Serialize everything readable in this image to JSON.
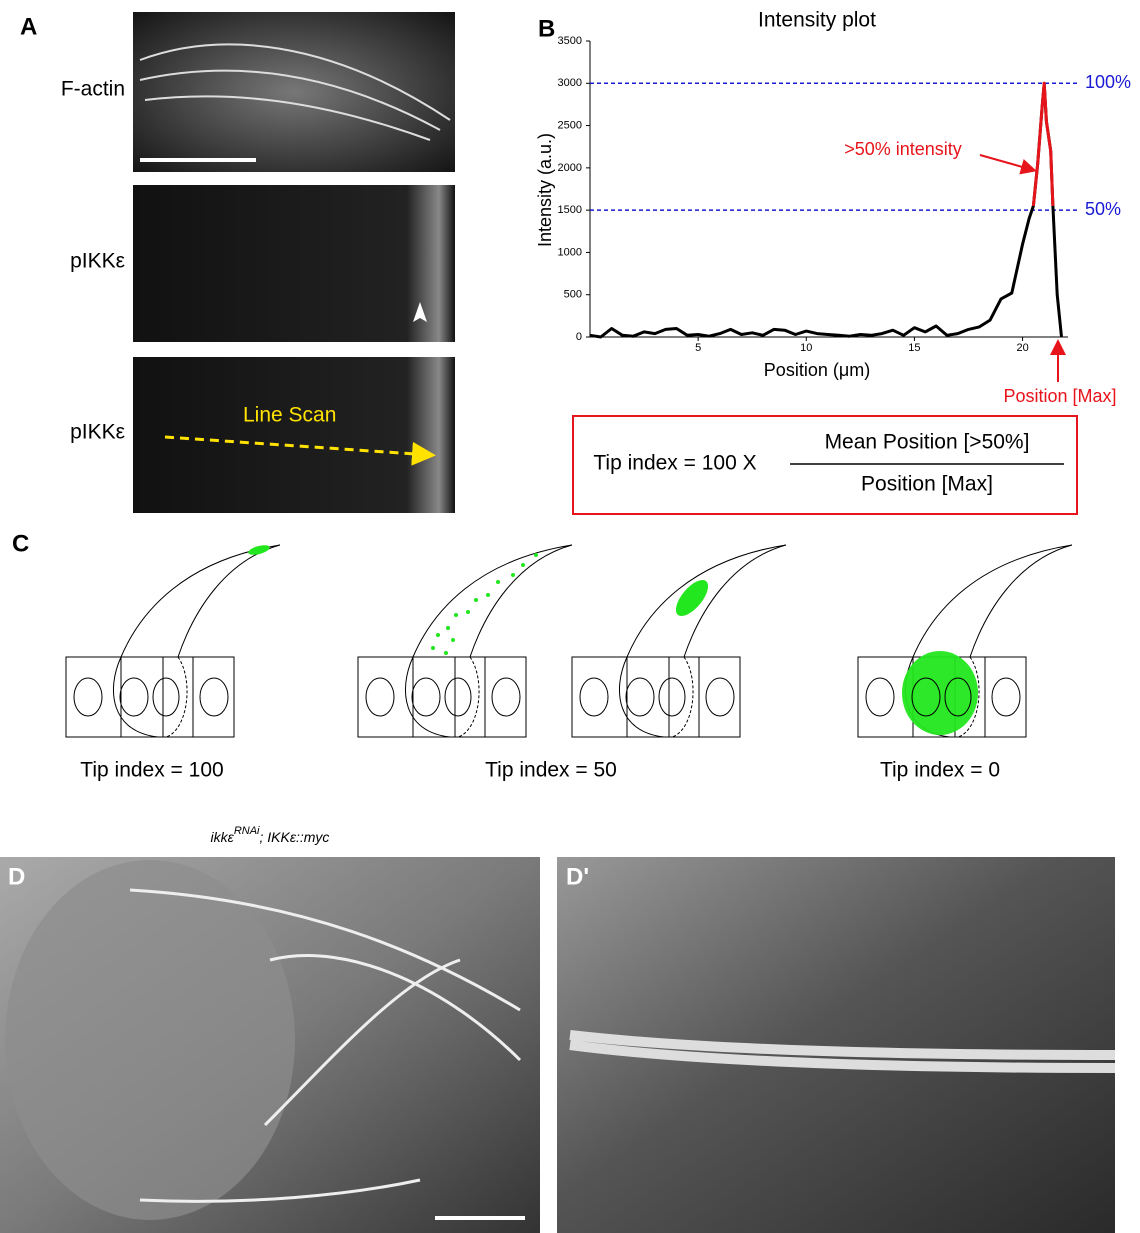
{
  "panel_labels": [
    "A",
    "B",
    "C",
    "D",
    "D'"
  ],
  "panel_a": {
    "row_labels": [
      "F-actin",
      "pIKKε",
      "pIKKε"
    ],
    "line_scan": "Line Scan"
  },
  "chart_data": {
    "type": "line",
    "title": "Intensity plot",
    "x_label": "Position (μm)",
    "y_label": "Intensity (a.u.)",
    "x": [
      0,
      0.5,
      1,
      1.5,
      2,
      2.5,
      3,
      3.5,
      4,
      4.5,
      5,
      5.5,
      6,
      6.5,
      7,
      7.5,
      8,
      8.5,
      9,
      9.5,
      10,
      10.5,
      11,
      11.5,
      12,
      12.5,
      13,
      13.5,
      14,
      14.5,
      15,
      15.5,
      16,
      16.5,
      17,
      17.5,
      18,
      18.5,
      19,
      19.5,
      20,
      20.3,
      20.5,
      20.7,
      20.9,
      21,
      21.1,
      21.3,
      21.4,
      21.6,
      21.8
    ],
    "series": [
      {
        "color": "#000000",
        "values": [
          20,
          0,
          100,
          20,
          10,
          60,
          40,
          90,
          100,
          20,
          30,
          10,
          40,
          90,
          30,
          50,
          20,
          90,
          80,
          30,
          70,
          40,
          30,
          20,
          10,
          30,
          20,
          40,
          80,
          20,
          110,
          60,
          130,
          20,
          40,
          90,
          120,
          200,
          450,
          520,
          1100,
          1400,
          1550,
          2050,
          2700,
          3000,
          2550,
          2200,
          1550,
          500,
          0
        ]
      },
      {
        "color": "#e8141b",
        "values": [
          null,
          null,
          null,
          null,
          null,
          null,
          null,
          null,
          null,
          null,
          null,
          null,
          null,
          null,
          null,
          null,
          null,
          null,
          null,
          null,
          null,
          null,
          null,
          null,
          null,
          null,
          null,
          null,
          null,
          null,
          null,
          null,
          null,
          null,
          null,
          null,
          null,
          null,
          null,
          null,
          null,
          null,
          1550,
          2050,
          2700,
          3000,
          2550,
          2200,
          1550,
          null,
          null
        ]
      }
    ],
    "xlim": [
      0,
      22.1
    ],
    "xticks": [
      5,
      10,
      15,
      20
    ],
    "ylim": [
      0,
      3500
    ],
    "yticks": [
      0,
      500,
      1000,
      1500,
      2000,
      2500,
      3000,
      3500
    ],
    "reference_lines": [
      {
        "value": 3000,
        "label": "100%",
        "color": "#1a1ad6"
      },
      {
        "value": 1500,
        "label": "50%",
        "color": "#1a1ad6"
      }
    ],
    "annotations": [
      ">50% intensity",
      "Position [Max]"
    ]
  },
  "formula": {
    "lhs": "Tip index = 100 X",
    "numerator": "Mean Position [>50%]",
    "denominator": "Position [Max]"
  },
  "panel_c": {
    "captions": [
      "Tip index = 100",
      "Tip index = 50",
      "Tip index = 0"
    ]
  },
  "panel_d": {
    "genotype": {
      "gene": "ikkε",
      "superscript": "RNAi",
      "rest": "; IKKε::myc"
    }
  }
}
